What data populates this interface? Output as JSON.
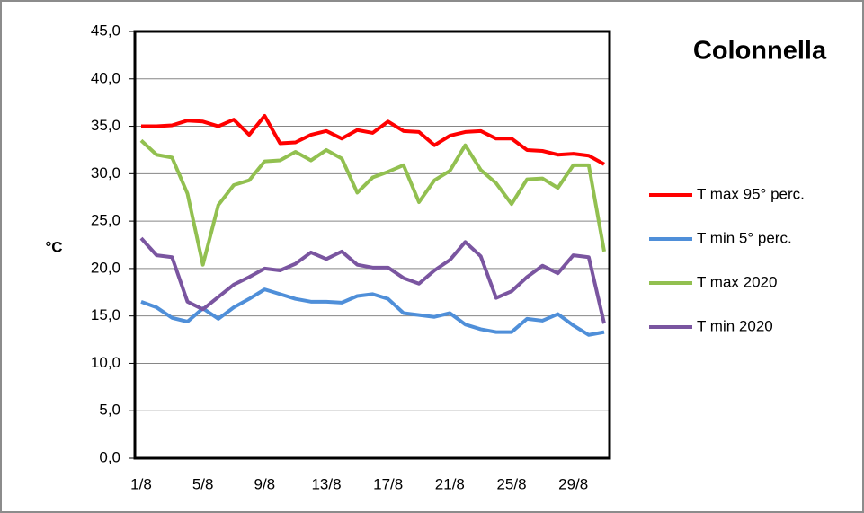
{
  "chart_data": {
    "type": "line",
    "title": "Colonnella",
    "y_label": "°C",
    "categories": [
      "1/8",
      null,
      null,
      null,
      "5/8",
      null,
      null,
      null,
      "9/8",
      null,
      null,
      null,
      "13/8",
      null,
      null,
      null,
      "17/8",
      null,
      null,
      null,
      "21/8",
      null,
      null,
      null,
      "25/8",
      null,
      null,
      null,
      "29/8",
      null,
      null
    ],
    "ylim": [
      0,
      45
    ],
    "yticks": [
      {
        "value": 0,
        "label": "0,0"
      },
      {
        "value": 5,
        "label": "5,0"
      },
      {
        "value": 10,
        "label": "10,0"
      },
      {
        "value": 15,
        "label": "15,0"
      },
      {
        "value": 20,
        "label": "20,0"
      },
      {
        "value": 25,
        "label": "25,0"
      },
      {
        "value": 30,
        "label": "30,0"
      },
      {
        "value": 35,
        "label": "35,0"
      },
      {
        "value": 40,
        "label": "40,0"
      },
      {
        "value": 45,
        "label": "45,0"
      }
    ],
    "grid": true,
    "legend": "right",
    "series": [
      {
        "name": "T max 95° perc.",
        "color": "#ff0000",
        "values": [
          35.0,
          35.0,
          35.1,
          35.6,
          35.5,
          35.0,
          35.7,
          34.1,
          36.1,
          33.2,
          33.3,
          34.1,
          34.5,
          33.7,
          34.6,
          34.3,
          35.5,
          34.5,
          34.4,
          33.0,
          34.0,
          34.4,
          34.5,
          33.7,
          33.7,
          32.5,
          32.4,
          32.0,
          32.1,
          31.9,
          31.0
        ]
      },
      {
        "name": "T min 5° perc.",
        "color": "#4f8fd9",
        "values": [
          16.5,
          15.9,
          14.8,
          14.4,
          15.8,
          14.7,
          15.9,
          16.8,
          17.8,
          17.3,
          16.8,
          16.5,
          16.5,
          16.4,
          17.1,
          17.3,
          16.8,
          15.3,
          15.1,
          14.9,
          15.3,
          14.1,
          13.6,
          13.3,
          13.3,
          14.7,
          14.5,
          15.2,
          14.0,
          13.0,
          13.3
        ]
      },
      {
        "name": "T max 2020",
        "color": "#92c050",
        "values": [
          33.5,
          32.0,
          31.7,
          27.9,
          20.4,
          26.7,
          28.8,
          29.3,
          31.3,
          31.4,
          32.3,
          31.4,
          32.5,
          31.6,
          28.0,
          29.6,
          30.2,
          30.9,
          27.0,
          29.3,
          30.3,
          33.0,
          30.4,
          29.0,
          26.8,
          29.4,
          29.5,
          28.5,
          30.9,
          30.9,
          21.8
        ]
      },
      {
        "name": "T min 2020",
        "color": "#7a55a0",
        "values": [
          23.2,
          21.4,
          21.2,
          16.5,
          15.7,
          17.0,
          18.3,
          19.1,
          20.0,
          19.8,
          20.5,
          21.7,
          21.0,
          21.8,
          20.4,
          20.1,
          20.1,
          19.0,
          18.4,
          19.8,
          20.9,
          22.8,
          21.3,
          16.9,
          17.6,
          19.1,
          20.3,
          19.5,
          21.4,
          21.2,
          14.2
        ]
      }
    ]
  }
}
